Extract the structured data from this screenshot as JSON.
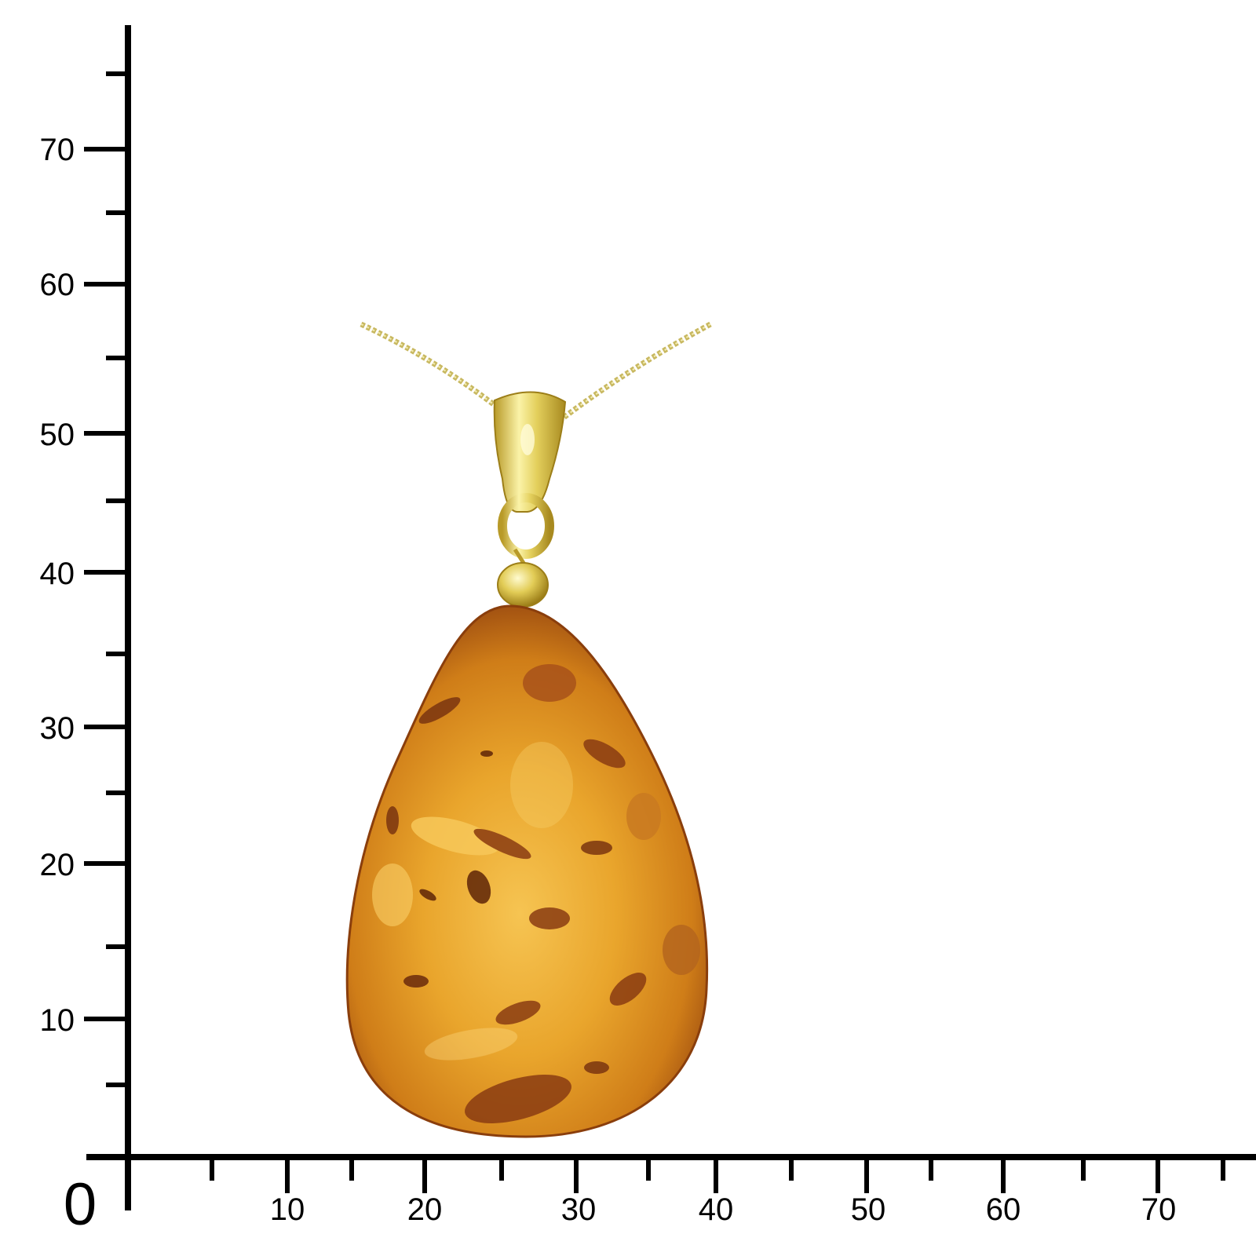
{
  "scale": {
    "unit": "mm",
    "origin_label": "0",
    "y_labels": [
      "70",
      "60",
      "50",
      "40",
      "30",
      "20",
      "10"
    ],
    "x_labels": [
      "10",
      "20",
      "30",
      "40",
      "50",
      "60",
      "70"
    ]
  },
  "product": {
    "subject": "amber-teardrop-pendant",
    "colors": {
      "amber_light": "#f2b53a",
      "amber_mid": "#d98a1a",
      "amber_dark": "#9a4a10",
      "gold": "#d8c24a",
      "gold_highlight": "#fbf3a8",
      "chain": "#c8b860"
    }
  }
}
